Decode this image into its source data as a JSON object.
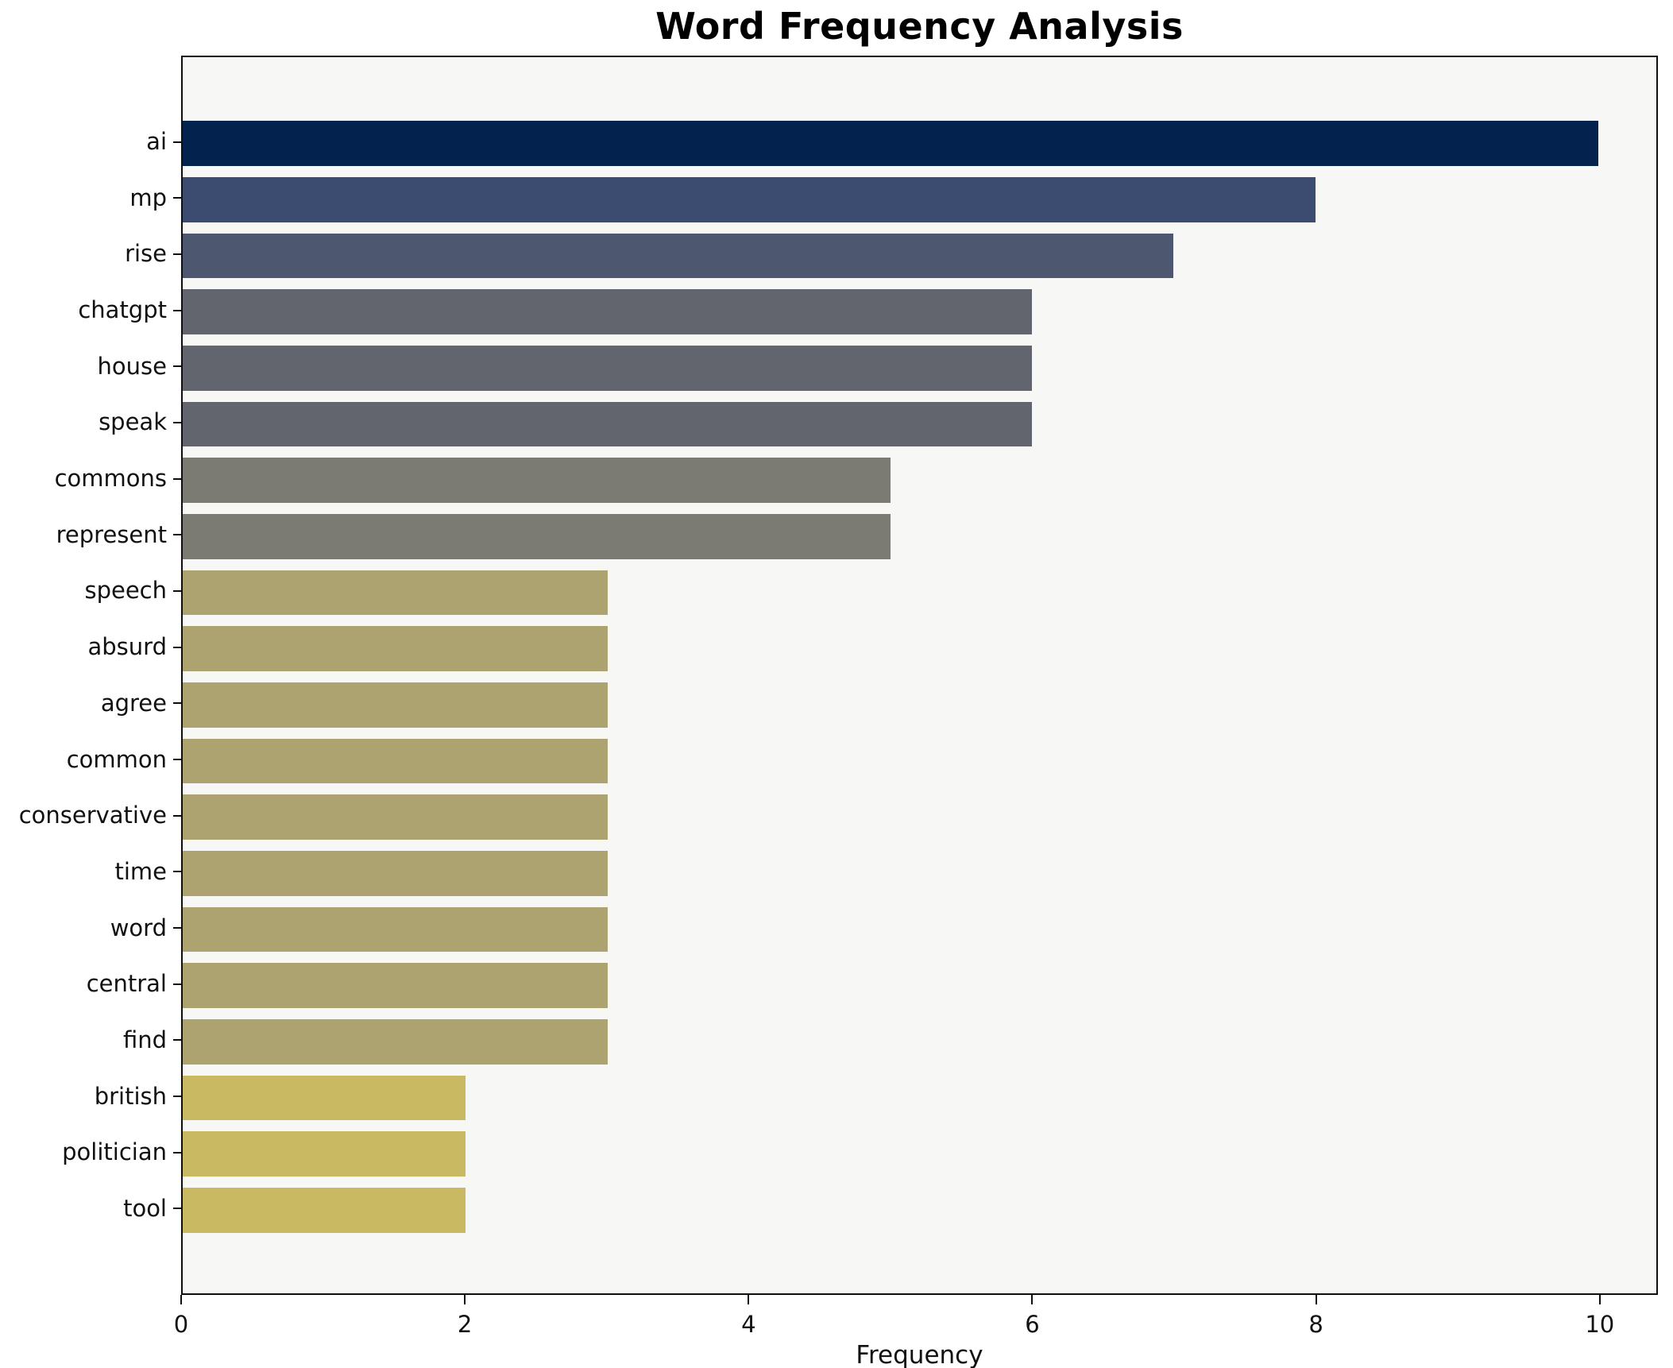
{
  "title": "Word Frequency Analysis",
  "chart_data": {
    "type": "bar",
    "orientation": "horizontal",
    "title": "Word Frequency Analysis",
    "xlabel": "Frequency",
    "ylabel": "",
    "categories": [
      "ai",
      "mp",
      "rise",
      "chatgpt",
      "house",
      "speak",
      "commons",
      "represent",
      "speech",
      "absurd",
      "agree",
      "common",
      "conservative",
      "time",
      "word",
      "central",
      "find",
      "british",
      "politician",
      "tool"
    ],
    "values": [
      10,
      8,
      7,
      6,
      6,
      6,
      5,
      5,
      3,
      3,
      3,
      3,
      3,
      3,
      3,
      3,
      3,
      2,
      2,
      2
    ],
    "bar_colors": [
      "#03224e",
      "#3c4b70",
      "#4e5770",
      "#63656e",
      "#63656e",
      "#63656e",
      "#7b7a73",
      "#7b7a73",
      "#ada371",
      "#ada371",
      "#ada371",
      "#ada371",
      "#ada371",
      "#ada371",
      "#ada371",
      "#ada371",
      "#ada371",
      "#cab963",
      "#cab963",
      "#cab963"
    ],
    "xlim": [
      0,
      10.41
    ],
    "x_ticks": [
      0,
      2,
      4,
      6,
      8,
      10
    ],
    "grid": false,
    "legend": null,
    "plot_bg": "#f7f7f5",
    "fig_bg": "#ffffff",
    "bar_height_frac": 0.8
  }
}
